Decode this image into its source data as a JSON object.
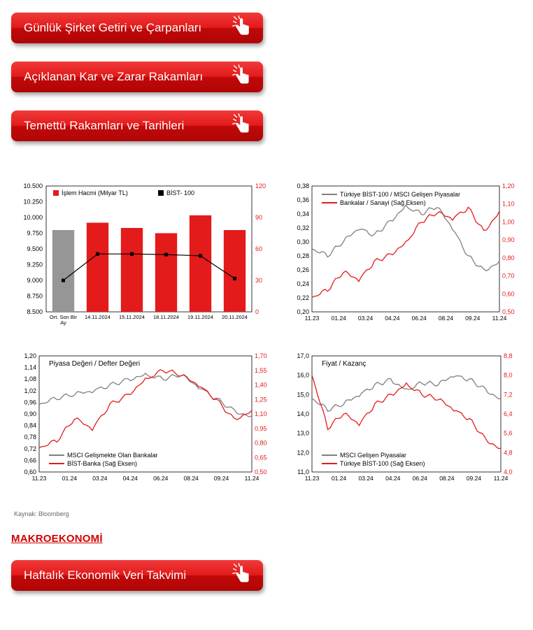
{
  "buttons": {
    "btn1": "Günlük Şirket Getiri ve Çarpanları",
    "btn2": "Açıklanan Kar ve Zarar Rakamları",
    "btn3": "Temettü Rakamları ve Tarihleri",
    "btn4": "Haftalık Ekonomik Veri Takvimi"
  },
  "source": "Kaynak: Bloomberg",
  "section_title": "MAKROEKONOMİ",
  "palette": {
    "red": "#e31b1b",
    "dark_red": "#c10808",
    "gray_line": "#808080",
    "gray_bar": "#969696",
    "black": "#000000",
    "axis": "#000000",
    "tick_text": "#000000"
  },
  "chart1": {
    "type": "bar-line-combo",
    "legend": [
      {
        "label": "İşlem Hacmi (Milyar TL)",
        "color": "#e31b1b",
        "marker": "square"
      },
      {
        "label": "BİST- 100",
        "color": "#000000",
        "marker": "square"
      }
    ],
    "x_categories": [
      "Ort. Son Bir\nAy",
      "14.11.2024",
      "15.11.2024",
      "18.11.2024",
      "19.11.2024",
      "20.11.2024"
    ],
    "y_left": {
      "min": 8500,
      "max": 10500,
      "step": 250
    },
    "y_right": {
      "min": 0,
      "max": 120,
      "step": 30,
      "color": "#e31b1b"
    },
    "bars": {
      "values_right_axis": [
        null,
        85,
        80,
        75,
        92,
        78
      ],
      "color": "#e31b1b",
      "first_bar_value_left": 9800,
      "first_bar_color": "#969696"
    },
    "line": {
      "values_left_axis": [
        9000,
        9420,
        9420,
        9410,
        9390,
        9030
      ],
      "color": "#000000",
      "marker_color": "#000000"
    },
    "background": "#ffffff"
  },
  "chart2": {
    "type": "dual-line",
    "legend": [
      {
        "label": "Türkiye BİST-100 / MSCI Gelişen Piyasalar",
        "color": "#808080"
      },
      {
        "label": "Bankalar / Sanayi (Sağ Eksen)",
        "color": "#e31b1b"
      }
    ],
    "x_labels": [
      "11.23",
      "01.24",
      "03.24",
      "04.24",
      "06.24",
      "08.24",
      "09.24",
      "11.24"
    ],
    "y_left": {
      "min": 0.2,
      "max": 0.38,
      "step": 0.02
    },
    "y_right": {
      "min": 0.5,
      "max": 1.2,
      "step": 0.1,
      "color": "#e31b1b"
    },
    "series_gray": [
      0.29,
      0.28,
      0.3,
      0.32,
      0.31,
      0.33,
      0.35,
      0.34,
      0.35,
      0.32,
      0.28,
      0.26,
      0.27
    ],
    "series_red": [
      0.58,
      0.62,
      0.72,
      0.68,
      0.78,
      0.82,
      0.88,
      1.0,
      1.05,
      1.02,
      1.08,
      0.95,
      1.05
    ],
    "background": "#ffffff"
  },
  "chart3": {
    "type": "dual-line",
    "title": "Piyasa Değeri / Defter Değeri",
    "legend": [
      {
        "label": "MSCI Gelişmekte Olan Bankalar",
        "color": "#808080"
      },
      {
        "label": "BİST-Banka (Sağ Eksen)",
        "color": "#e31b1b"
      }
    ],
    "x_labels": [
      "11.23",
      "01.24",
      "03.24",
      "04.24",
      "06.24",
      "08.24",
      "09.24",
      "11.24"
    ],
    "y_left": {
      "min": 0.6,
      "max": 1.2,
      "step": 0.06
    },
    "y_right": {
      "min": 0.5,
      "max": 1.7,
      "step": 0.15,
      "color": "#e31b1b"
    },
    "series_gray": [
      0.95,
      0.98,
      1.0,
      1.02,
      1.05,
      1.08,
      1.1,
      1.08,
      1.1,
      1.04,
      0.98,
      0.92,
      0.88
    ],
    "series_red": [
      0.75,
      0.82,
      1.05,
      0.95,
      1.2,
      1.3,
      1.45,
      1.55,
      1.5,
      1.4,
      1.25,
      1.05,
      1.12
    ],
    "background": "#ffffff"
  },
  "chart4": {
    "type": "dual-line",
    "title": "Fiyat / Kazanç",
    "legend": [
      {
        "label": "MSCI Gelişen Piyasalar",
        "color": "#808080"
      },
      {
        "label": "Türkiye BİST-100 (Sağ Eksen)",
        "color": "#e31b1b"
      }
    ],
    "x_labels": [
      "11.23",
      "01.24",
      "03.24",
      "04.24",
      "06.24",
      "08.24",
      "09.24",
      "11.24"
    ],
    "y_left": {
      "min": 11.0,
      "max": 17.0,
      "step": 1.0
    },
    "y_right": {
      "min": 4.0,
      "max": 8.8,
      "step": 0.8,
      "color": "#e31b1b"
    },
    "series_gray": [
      14.8,
      14.2,
      14.5,
      15.0,
      15.5,
      15.8,
      15.2,
      15.6,
      15.5,
      16.0,
      15.8,
      15.3,
      14.7
    ],
    "series_red": [
      8.0,
      5.8,
      6.4,
      6.0,
      6.8,
      7.2,
      7.6,
      7.2,
      7.0,
      6.6,
      6.2,
      5.4,
      4.9
    ],
    "background": "#ffffff"
  }
}
